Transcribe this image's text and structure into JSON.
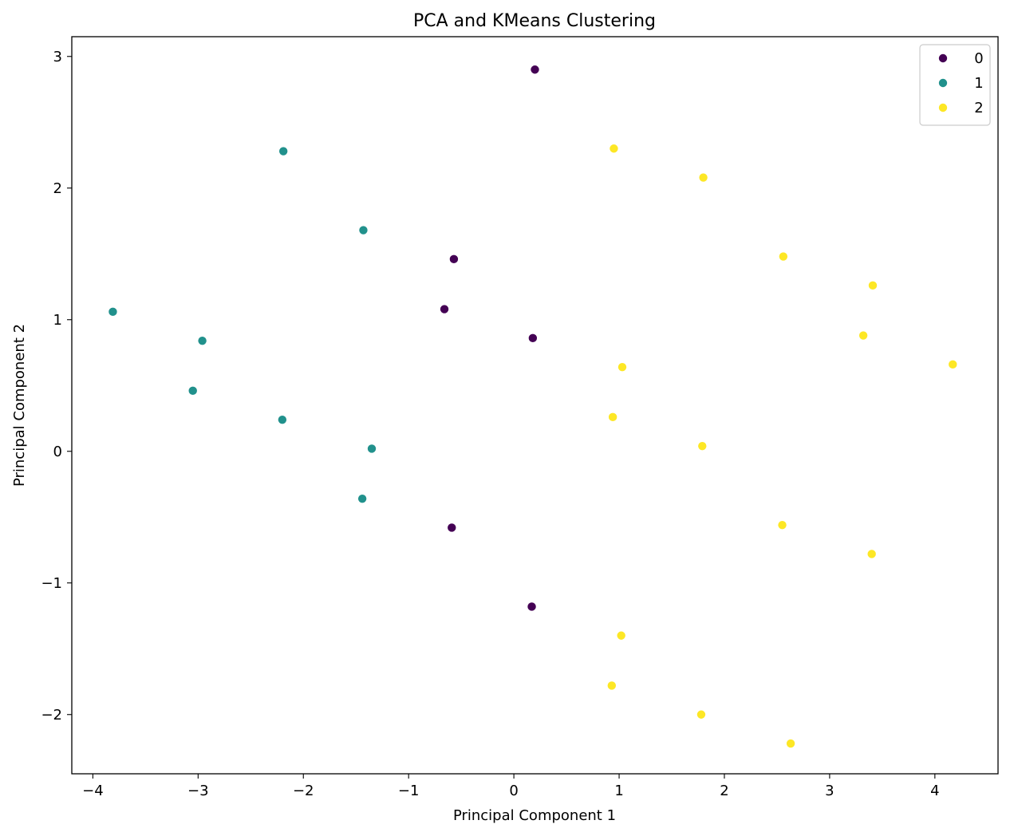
{
  "chart_data": {
    "type": "scatter",
    "title": "PCA and KMeans Clustering",
    "xlabel": "Principal Component 1",
    "ylabel": "Principal Component 2",
    "xlim": [
      -4.2,
      4.6
    ],
    "ylim": [
      -2.45,
      3.15
    ],
    "x_ticks": [
      -4,
      -3,
      -2,
      -1,
      0,
      1,
      2,
      3,
      4
    ],
    "y_ticks": [
      -2,
      -1,
      0,
      1,
      2,
      3
    ],
    "x_tick_labels": [
      "−4",
      "−3",
      "−2",
      "−1",
      "0",
      "1",
      "2",
      "3",
      "4"
    ],
    "y_tick_labels": [
      "−2",
      "−1",
      "0",
      "1",
      "2",
      "3"
    ],
    "grid": false,
    "legend_position": "top-right",
    "series": [
      {
        "name": "0",
        "color": "#440154",
        "points": [
          [
            0.2,
            2.9
          ],
          [
            -0.57,
            1.46
          ],
          [
            -0.66,
            1.08
          ],
          [
            0.18,
            0.86
          ],
          [
            -0.59,
            -0.58
          ],
          [
            0.17,
            -1.18
          ]
        ]
      },
      {
        "name": "1",
        "color": "#21918c",
        "points": [
          [
            -2.19,
            2.28
          ],
          [
            -1.43,
            1.68
          ],
          [
            -3.81,
            1.06
          ],
          [
            -2.96,
            0.84
          ],
          [
            -3.05,
            0.46
          ],
          [
            -2.2,
            0.24
          ],
          [
            -1.35,
            0.02
          ],
          [
            -1.44,
            -0.36
          ]
        ]
      },
      {
        "name": "2",
        "color": "#fde725",
        "points": [
          [
            0.95,
            2.3
          ],
          [
            1.8,
            2.08
          ],
          [
            2.56,
            1.48
          ],
          [
            3.41,
            1.26
          ],
          [
            3.32,
            0.88
          ],
          [
            4.17,
            0.66
          ],
          [
            1.03,
            0.64
          ],
          [
            0.94,
            0.26
          ],
          [
            1.79,
            0.04
          ],
          [
            2.55,
            -0.56
          ],
          [
            3.4,
            -0.78
          ],
          [
            1.02,
            -1.4
          ],
          [
            0.93,
            -1.78
          ],
          [
            1.78,
            -2.0
          ],
          [
            2.63,
            -2.22
          ]
        ]
      }
    ]
  }
}
